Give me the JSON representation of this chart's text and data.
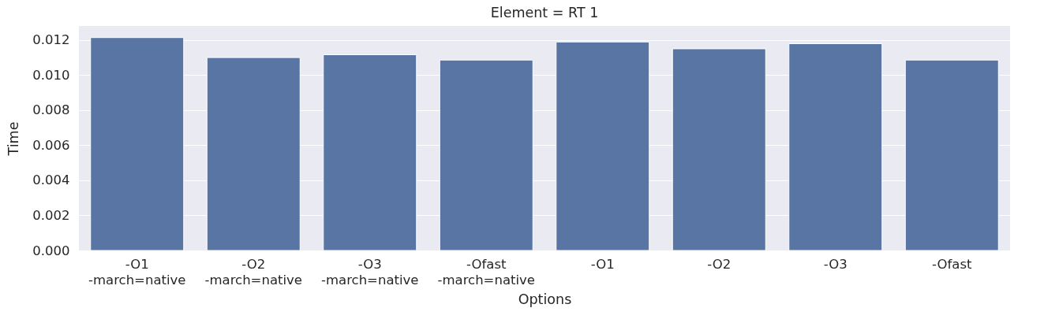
{
  "chart_data": {
    "type": "bar",
    "title": "Element = RT 1",
    "xlabel": "Options",
    "ylabel": "Time",
    "categories": [
      "-O1\n-march=native",
      "-O2\n-march=native",
      "-O3\n-march=native",
      "-Ofast\n-march=native",
      "-O1",
      "-O2",
      "-O3",
      "-Ofast"
    ],
    "values": [
      0.01214,
      0.011,
      0.01116,
      0.01086,
      0.01189,
      0.0115,
      0.01179,
      0.01086
    ],
    "color": "#5875a4",
    "ylim": [
      0,
      0.0128
    ],
    "yticks": [
      {
        "value": 0,
        "label": "0.000"
      },
      0.002,
      0.004,
      0.006,
      0.008,
      {
        "value": 0.01,
        "label": "0.010"
      },
      0.012
    ],
    "grid": "y"
  }
}
